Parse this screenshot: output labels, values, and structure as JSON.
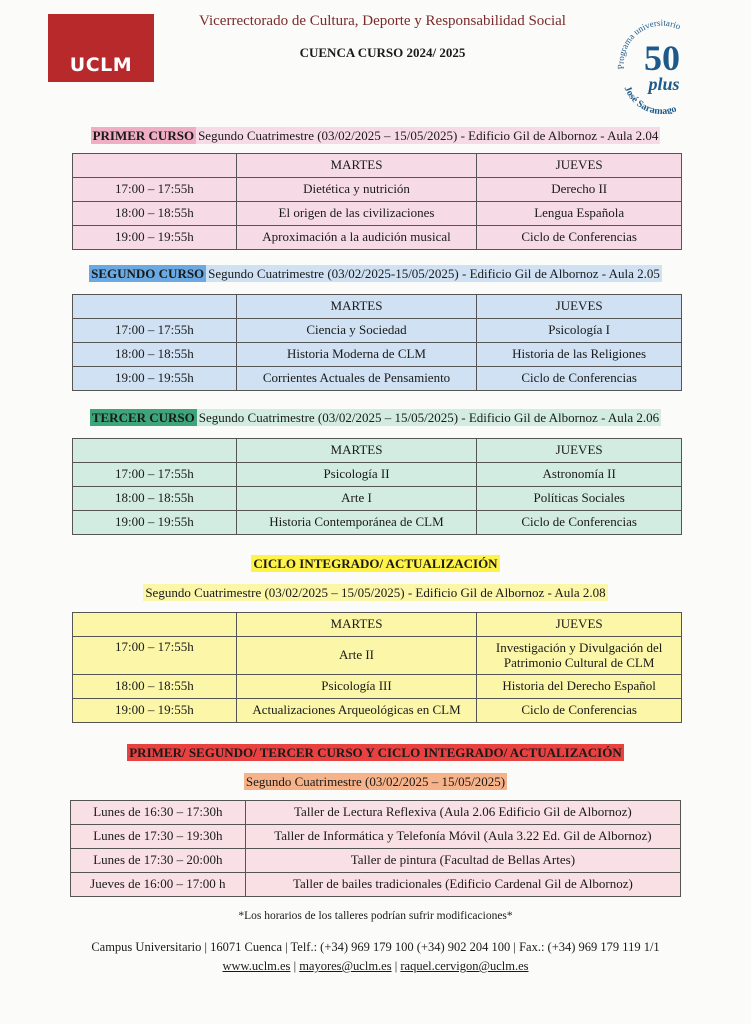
{
  "header": {
    "logo_text": "UCLM",
    "vicerrectorado": "Vicerrectorado de Cultura, Deporte y Responsabilidad Social",
    "title": "CUENCA CURSO 2024/ 2025",
    "badge": {
      "number": "50",
      "plus": "plus",
      "arc_top": "Programa universitario",
      "arc_bottom": "José Saramago"
    }
  },
  "colors": {
    "primer": "#f6dbe6",
    "segundo": "#cfe1f3",
    "tercer": "#d2ece2",
    "ciclo": "#fbf6a8",
    "talleres": "#f8e0e4",
    "primer_label": "#f0aec4",
    "segundo_label": "#6aa9e2",
    "tercer_label": "#3ea57a",
    "ciclo_label": "#fff34a",
    "talleres_label": "#e8413f",
    "talleres_sub": "#f6b38a"
  },
  "sections": [
    {
      "label": "PRIMER CURSO",
      "subtitle": "Segundo Cuatrimestre (03/02/2025 – 15/05/2025) - Edificio Gil de Albornoz - Aula 2.04",
      "columns": [
        "",
        "MARTES",
        "JUEVES"
      ],
      "rows": [
        [
          "17:00 – 17:55h",
          "Dietética y nutrición",
          "Derecho II"
        ],
        [
          "18:00 – 18:55h",
          "El origen de las civilizaciones",
          "Lengua Española"
        ],
        [
          "19:00 – 19:55h",
          "Aproximación a la audición musical",
          "Ciclo de Conferencias"
        ]
      ]
    },
    {
      "label": "SEGUNDO CURSO",
      "subtitle": "Segundo Cuatrimestre (03/02/2025-15/05/2025) - Edificio Gil de Albornoz - Aula 2.05",
      "columns": [
        "",
        "MARTES",
        "JUEVES"
      ],
      "rows": [
        [
          "17:00 – 17:55h",
          "Ciencia y Sociedad",
          "Psicología I"
        ],
        [
          "18:00 – 18:55h",
          "Historia Moderna de CLM",
          "Historia de las Religiones"
        ],
        [
          "19:00 – 19:55h",
          "Corrientes Actuales de Pensamiento",
          "Ciclo de Conferencias"
        ]
      ]
    },
    {
      "label": "TERCER CURSO",
      "subtitle": "Segundo Cuatrimestre (03/02/2025 – 15/05/2025) - Edificio Gil de Albornoz - Aula 2.06",
      "columns": [
        "",
        "MARTES",
        "JUEVES"
      ],
      "rows": [
        [
          "17:00 – 17:55h",
          "Psicología II",
          "Astronomía II"
        ],
        [
          "18:00 – 18:55h",
          "Arte I",
          "Políticas Sociales"
        ],
        [
          "19:00 – 19:55h",
          "Historia Contemporánea de CLM",
          "Ciclo de Conferencias"
        ]
      ]
    },
    {
      "label": "CICLO INTEGRADO/ ACTUALIZACIÓN",
      "subtitle": "Segundo Cuatrimestre (03/02/2025 – 15/05/2025) - Edificio Gil de Albornoz - Aula 2.08",
      "columns": [
        "",
        "MARTES",
        "JUEVES"
      ],
      "rows": [
        [
          "17:00 – 17:55h",
          "Arte II",
          "Investigación y Divulgación del Patrimonio Cultural de CLM"
        ],
        [
          "18:00 – 18:55h",
          "Psicología III",
          "Historia del Derecho Español"
        ],
        [
          "19:00 – 19:55h",
          "Actualizaciones Arqueológicas en CLM",
          "Ciclo de Conferencias"
        ]
      ]
    },
    {
      "label": "PRIMER/ SEGUNDO/ TERCER CURSO Y CICLO INTEGRADO/ ACTUALIZACIÓN",
      "subtitle": "Segundo Cuatrimestre (03/02/2025 – 15/05/2025)",
      "rows": [
        [
          "Lunes de 16:30 – 17:30h",
          "Taller de Lectura Reflexiva (Aula 2.06 Edificio Gil de Albornoz)"
        ],
        [
          "Lunes de 17:30 – 19:30h",
          "Taller de Informática y Telefonía Móvil (Aula 3.22 Ed. Gil de Albornoz)"
        ],
        [
          "Lunes de 17:30 – 20:00h",
          "Taller de pintura (Facultad de Bellas Artes)"
        ],
        [
          "Jueves de 16:00 – 17:00 h",
          "Taller de bailes tradicionales (Edificio Cardenal Gil de Albornoz)"
        ]
      ]
    }
  ],
  "footer": {
    "note": "*Los horarios de los talleres podrían sufrir modificaciones*",
    "contact": "Campus Universitario | 16071 Cuenca | Telf.: (+34) 969 179 100 (+34) 902 204 100 | Fax.: (+34) 969 179 119 1/1",
    "web": "www.uclm.es",
    "sep": " | ",
    "email1": "mayores@uclm.es",
    "email2": "raquel.cervigon@uclm.es"
  }
}
